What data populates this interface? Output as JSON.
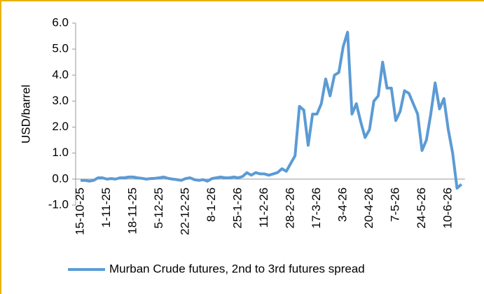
{
  "chart_data": {
    "type": "line",
    "y_label": "USD/barrel",
    "categories": [
      "15-10-25",
      null,
      null,
      null,
      null,
      null,
      "1-11-25",
      null,
      null,
      null,
      null,
      null,
      "18-11-25",
      null,
      null,
      null,
      null,
      null,
      "5-12-25",
      null,
      null,
      null,
      null,
      null,
      "22-12-25",
      null,
      null,
      null,
      null,
      null,
      "8-1-26",
      null,
      null,
      null,
      null,
      null,
      "25-1-26",
      null,
      null,
      null,
      null,
      null,
      "11-2-26",
      null,
      null,
      null,
      null,
      null,
      "28-2-26",
      null,
      null,
      null,
      null,
      null,
      "17-3-26",
      null,
      null,
      null,
      null,
      null,
      "3-4-26",
      null,
      null,
      null,
      null,
      null,
      "20-4-26",
      null,
      null,
      null,
      null,
      null,
      "7-5-26",
      null,
      null,
      null,
      null,
      null,
      "24-5-26",
      null,
      null,
      null,
      null,
      null,
      "10-6-26",
      null,
      null,
      null
    ],
    "series": [
      {
        "name": "Murban Crude futures, 2nd to 3rd futures spread",
        "color": "#5b9bd5",
        "values": [
          -0.05,
          -0.05,
          -0.08,
          -0.05,
          0.05,
          0.05,
          0.0,
          0.02,
          0.0,
          0.05,
          0.05,
          0.08,
          0.08,
          0.05,
          0.03,
          0.0,
          0.02,
          0.03,
          0.05,
          0.08,
          0.03,
          0.0,
          -0.02,
          -0.05,
          0.02,
          0.05,
          -0.02,
          -0.05,
          -0.02,
          -0.08,
          0.02,
          0.05,
          0.08,
          0.05,
          0.05,
          0.08,
          0.05,
          0.1,
          0.25,
          0.15,
          0.25,
          0.2,
          0.2,
          0.15,
          0.2,
          0.25,
          0.4,
          0.3,
          0.6,
          0.9,
          2.8,
          2.65,
          1.3,
          2.5,
          2.5,
          2.9,
          3.85,
          3.2,
          4.0,
          4.1,
          5.1,
          5.65,
          2.5,
          2.9,
          2.2,
          1.6,
          1.9,
          3.0,
          3.2,
          4.5,
          3.5,
          3.5,
          2.25,
          2.6,
          3.4,
          3.3,
          2.9,
          2.5,
          1.1,
          1.5,
          2.5,
          3.7,
          2.7,
          3.1,
          1.9,
          1.0,
          -0.35,
          -0.2
        ]
      }
    ],
    "ylim": [
      -1,
      6
    ],
    "yticks": [
      {
        "value": 6,
        "label": "6.0"
      },
      {
        "value": 5,
        "label": "5.0"
      },
      {
        "value": 4,
        "label": "4.0"
      },
      {
        "value": 3,
        "label": "3.0"
      },
      {
        "value": 2,
        "label": "2.0"
      },
      {
        "value": 1,
        "label": "1.0"
      },
      {
        "value": 0,
        "label": "0.0"
      },
      {
        "value": -1,
        "label": "-1.0"
      }
    ],
    "grid": false,
    "legend": "bottom"
  }
}
